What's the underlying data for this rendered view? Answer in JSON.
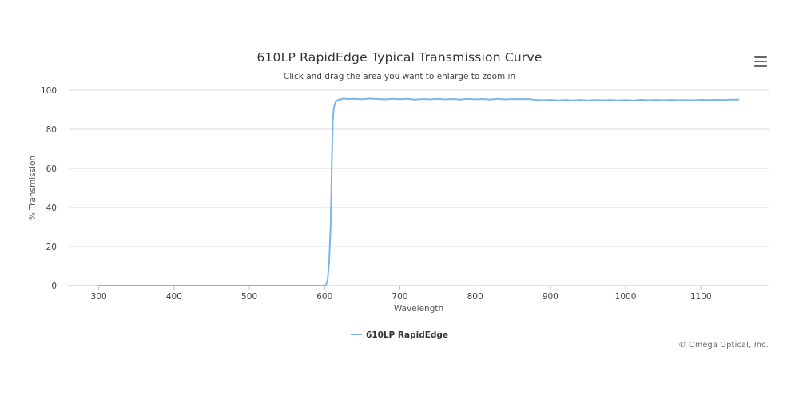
{
  "chart_data": {
    "type": "line",
    "title": "610LP RapidEdge Typical Transmission Curve",
    "subtitle": "Click and drag the area you want to enlarge to zoom in",
    "xlabel": "Wavelength",
    "ylabel": "% Transmission",
    "xlim": [
      260,
      1190
    ],
    "ylim": [
      0,
      100
    ],
    "x_ticks": [
      300,
      400,
      500,
      600,
      700,
      800,
      900,
      1000,
      1100
    ],
    "y_ticks": [
      0,
      20,
      40,
      60,
      80,
      100
    ],
    "grid": true,
    "legend_position": "bottom-center",
    "series": [
      {
        "name": "610LP RapidEdge",
        "color": "#7cb5ec",
        "x": [
          300,
          400,
          500,
          600,
          602,
          604,
          606,
          608,
          609,
          610,
          611,
          612,
          613,
          614,
          616,
          618,
          620,
          622,
          625,
          630,
          640,
          650,
          660,
          670,
          680,
          690,
          700,
          710,
          720,
          730,
          740,
          750,
          760,
          770,
          780,
          790,
          800,
          810,
          820,
          830,
          840,
          850,
          860,
          870,
          880,
          890,
          900,
          910,
          920,
          930,
          940,
          950,
          960,
          970,
          980,
          990,
          1000,
          1010,
          1020,
          1030,
          1040,
          1050,
          1060,
          1070,
          1080,
          1090,
          1100,
          1110,
          1120,
          1130,
          1140,
          1150
        ],
        "y": [
          0,
          0,
          0,
          0,
          0.5,
          3,
          12,
          30,
          50,
          70,
          85,
          90,
          92,
          93.5,
          94.5,
          95,
          95.5,
          95.2,
          95.8,
          95.5,
          95.6,
          95.4,
          95.7,
          95.5,
          95.3,
          95.6,
          95.4,
          95.6,
          95.2,
          95.5,
          95.3,
          95.6,
          95.3,
          95.5,
          95.2,
          95.6,
          95.3,
          95.5,
          95.2,
          95.6,
          95.3,
          95.5,
          95.4,
          95.5,
          95.1,
          94.9,
          95.1,
          94.8,
          95.0,
          94.8,
          95.0,
          94.8,
          95.0,
          94.9,
          95.0,
          94.8,
          95.0,
          94.8,
          95.1,
          94.9,
          95.0,
          94.9,
          95.1,
          94.9,
          95.0,
          94.9,
          95.1,
          95.0,
          95.1,
          95.0,
          95.2,
          95.2
        ]
      }
    ]
  },
  "toolbar": {
    "menu_icon": "hamburger-menu-icon"
  },
  "credits": "© Omega Optical, Inc."
}
